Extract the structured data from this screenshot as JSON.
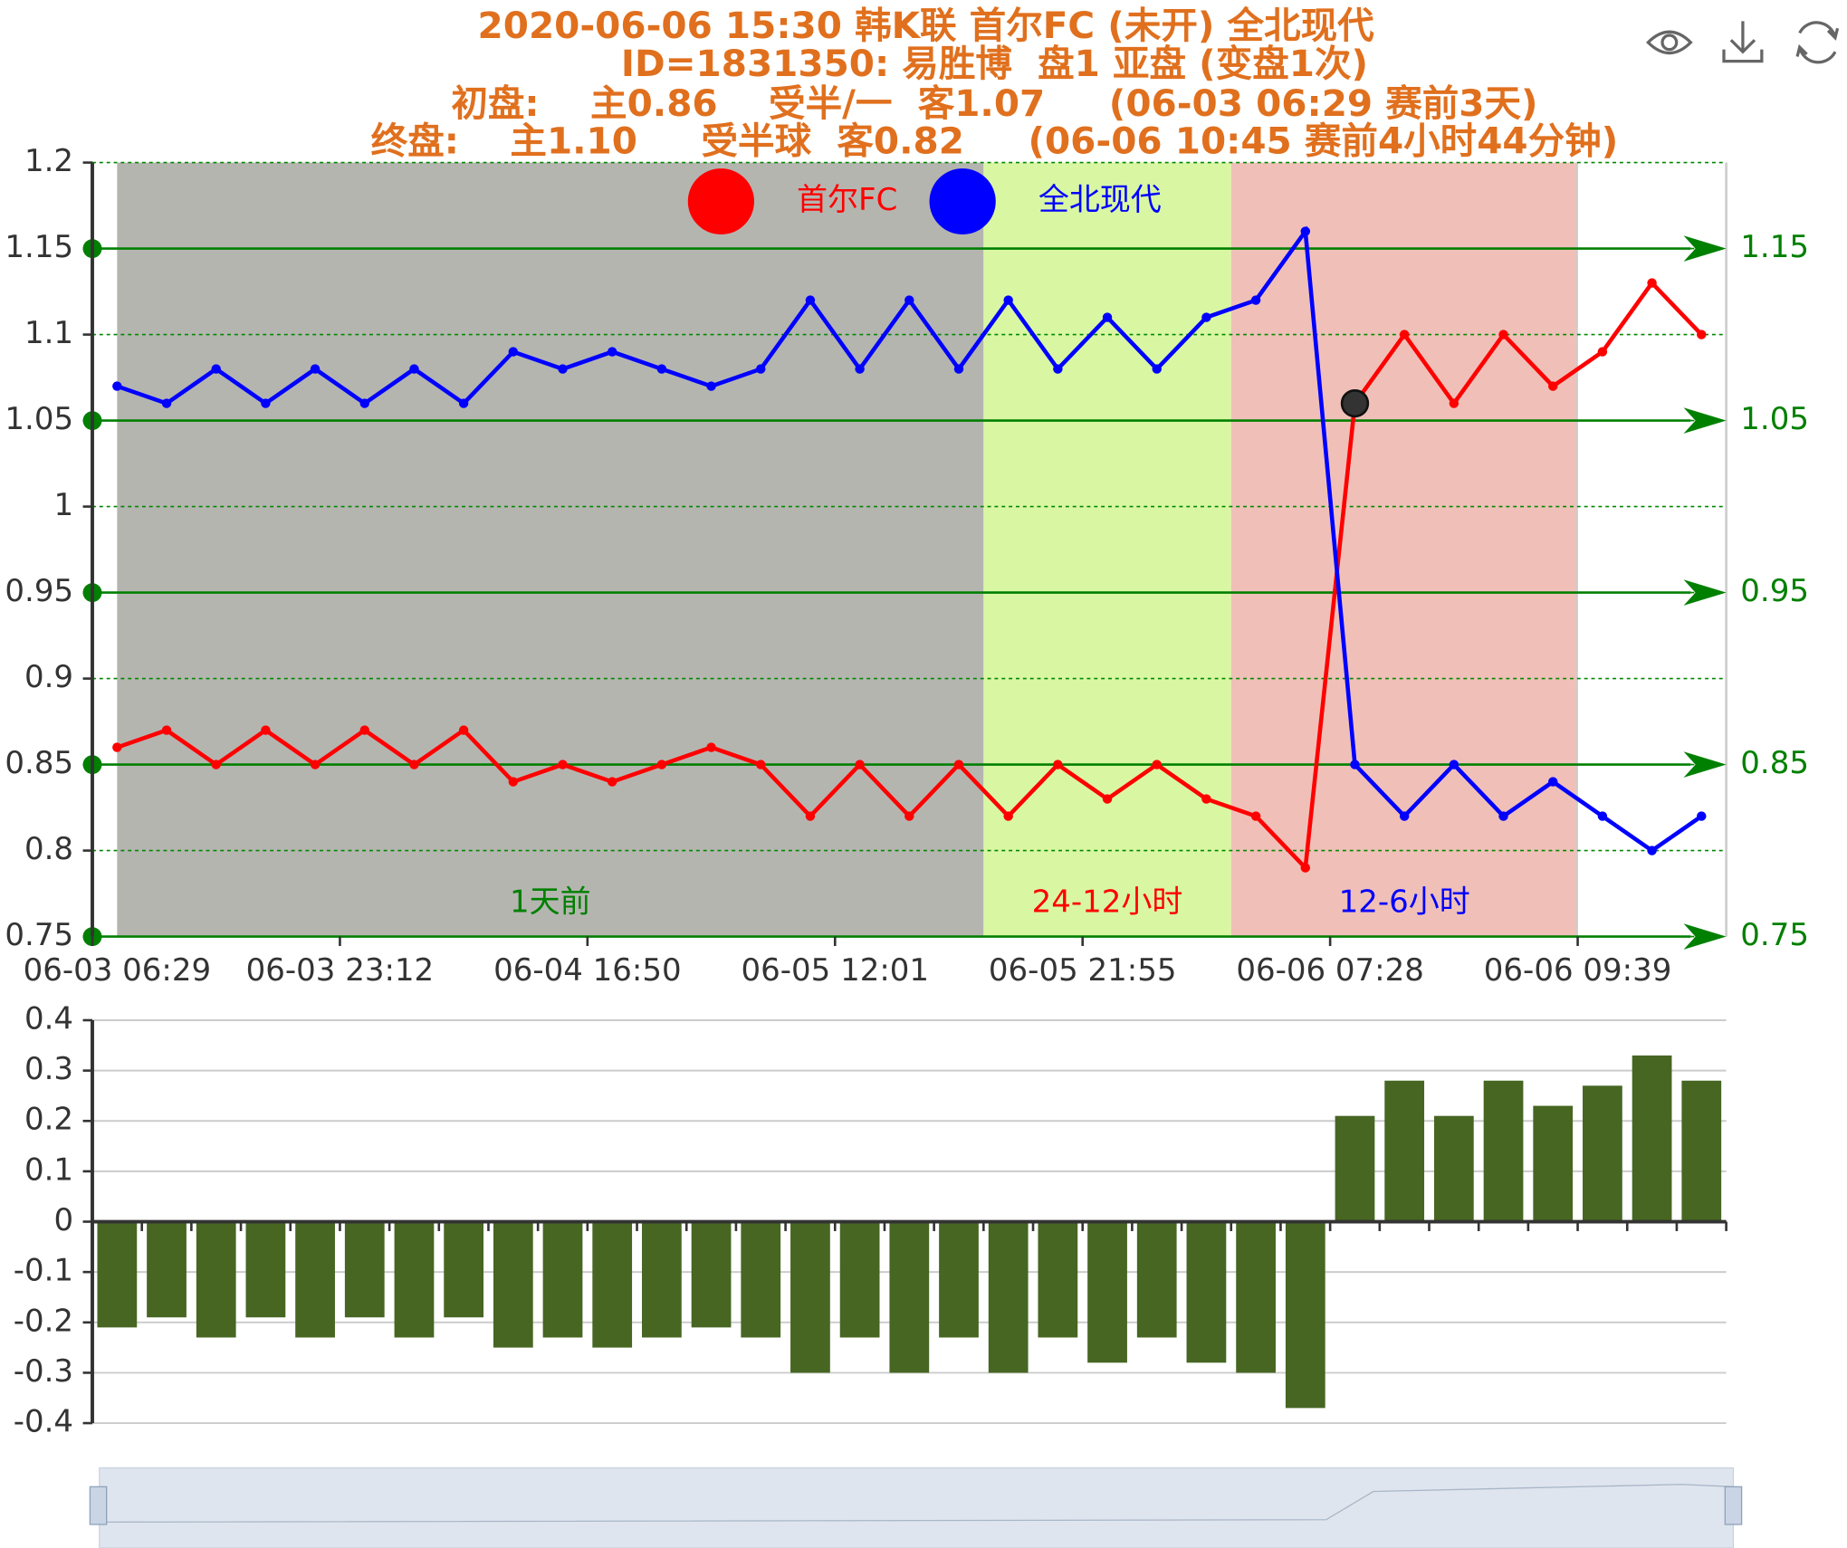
{
  "title_lines": [
    "2020-06-06 15:30 韩K联 首尔FC (未开) 全北现代",
    "ID=1831350: 易胜博  盘1 亚盘 (变盘1次)",
    "初盘:    主0.86    受半/一  客1.07     (06-03 06:29 赛前3天)",
    "终盘:    主1.10     受半球  客0.82     (06-06 10:45 赛前4小时44分钟)"
  ],
  "chart_data": [
    {
      "type": "line",
      "categories": [
        "06-03 06:29",
        null,
        null,
        null,
        null,
        "06-03 23:12",
        null,
        null,
        null,
        null,
        "06-04 16:50",
        null,
        null,
        null,
        null,
        "06-05 12:01",
        null,
        null,
        null,
        null,
        "06-05 21:55",
        null,
        null,
        null,
        null,
        "06-06 07:28",
        null,
        null,
        null,
        null,
        "06-06 09:39",
        null,
        null
      ],
      "series": [
        {
          "name": "首尔FC",
          "color": "#ff0000",
          "values": [
            0.86,
            0.87,
            0.85,
            0.87,
            0.85,
            0.87,
            0.85,
            0.87,
            0.84,
            0.85,
            0.84,
            0.85,
            0.86,
            0.85,
            0.82,
            0.85,
            0.82,
            0.85,
            0.82,
            0.85,
            0.83,
            0.85,
            0.83,
            0.82,
            0.79,
            1.06,
            1.1,
            1.06,
            1.1,
            1.07,
            1.09,
            1.13,
            1.1
          ]
        },
        {
          "name": "全北现代",
          "color": "#0000ff",
          "values": [
            1.07,
            1.06,
            1.08,
            1.06,
            1.08,
            1.06,
            1.08,
            1.06,
            1.09,
            1.08,
            1.09,
            1.08,
            1.07,
            1.08,
            1.12,
            1.08,
            1.12,
            1.08,
            1.12,
            1.08,
            1.11,
            1.08,
            1.11,
            1.12,
            1.16,
            0.85,
            0.82,
            0.85,
            0.82,
            0.84,
            0.82,
            0.8,
            0.82
          ]
        }
      ],
      "ylim": [
        0.75,
        1.2
      ],
      "yticks": [
        1.2,
        1.15,
        1.1,
        1.05,
        1,
        0.95,
        0.9,
        0.85,
        0.8,
        0.75
      ],
      "mark_lines": [
        1.15,
        1.05,
        0.95,
        0.85,
        0.75
      ],
      "mark_line_color": "#008000",
      "grid": true,
      "highlight": {
        "series": 0,
        "index": 25
      },
      "regions": [
        {
          "label": "1天前",
          "from": 0,
          "to": 17,
          "color": "#b5b5b0",
          "label_color": "#008000"
        },
        {
          "label": "24-12小时",
          "from": 17,
          "to": 22,
          "color": "#d9f7a3",
          "label_color": "#ff0000"
        },
        {
          "label": "12-6小时",
          "from": 22,
          "to": 29,
          "color": "#f0c0b8",
          "label_color": "#0000ff"
        }
      ]
    },
    {
      "type": "bar",
      "values": [
        -0.21,
        -0.19,
        -0.23,
        -0.19,
        -0.23,
        -0.19,
        -0.23,
        -0.19,
        -0.25,
        -0.23,
        -0.25,
        -0.23,
        -0.21,
        -0.23,
        -0.3,
        -0.23,
        -0.3,
        -0.23,
        -0.3,
        -0.23,
        -0.28,
        -0.23,
        -0.28,
        -0.3,
        -0.37,
        0.21,
        0.28,
        0.21,
        0.28,
        0.23,
        0.27,
        0.33,
        0.28
      ],
      "color": "#466622",
      "ylim": [
        -0.4,
        0.4
      ],
      "yticks": [
        0.4,
        0.3,
        0.2,
        0.1,
        0,
        -0.1,
        -0.2,
        -0.3,
        -0.4
      ],
      "grid": true
    }
  ]
}
